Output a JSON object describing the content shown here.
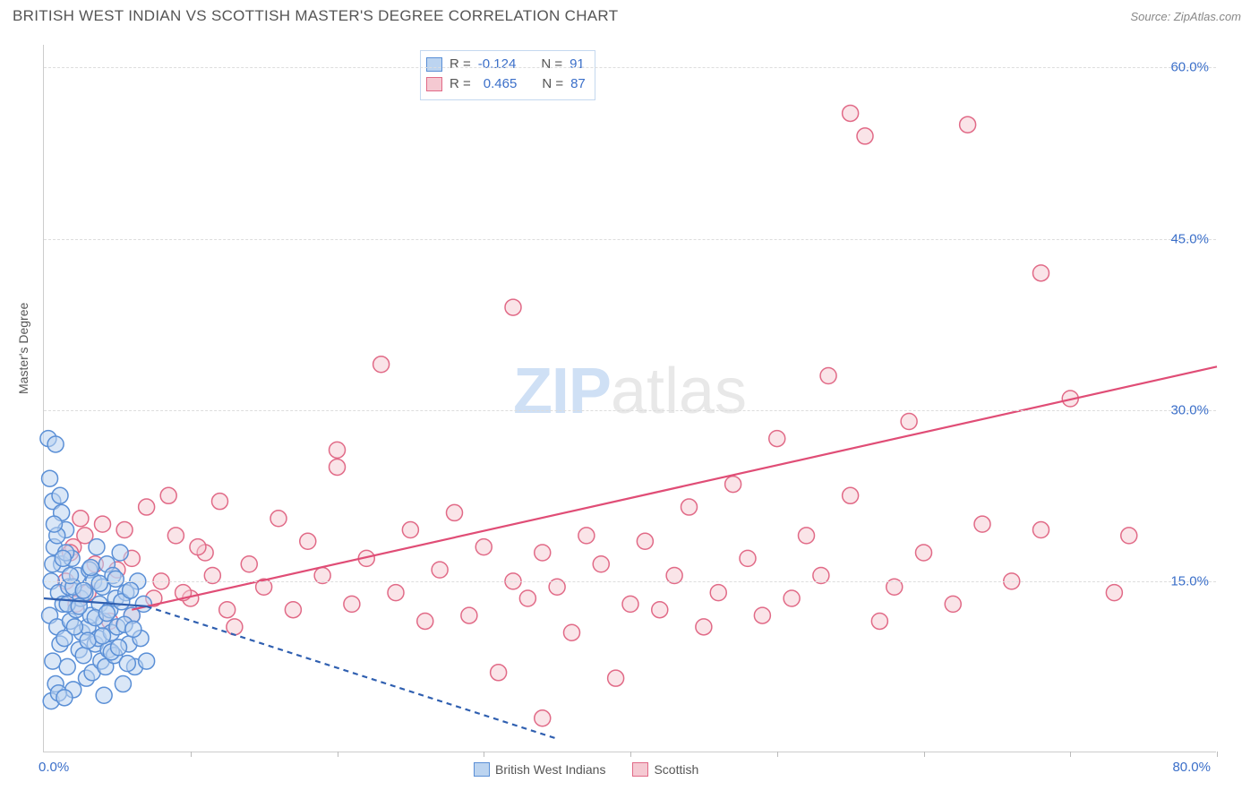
{
  "header": {
    "title": "BRITISH WEST INDIAN VS SCOTTISH MASTER'S DEGREE CORRELATION CHART",
    "source": "Source: ZipAtlas.com"
  },
  "watermark": {
    "zip": "ZIP",
    "atlas": "atlas"
  },
  "chart": {
    "type": "scatter",
    "yaxis_title": "Master's Degree",
    "xlim": [
      0,
      80
    ],
    "ylim": [
      0,
      62
    ],
    "xaxis_min_label": "0.0%",
    "xaxis_max_label": "80.0%",
    "yticks": [
      15,
      30,
      45,
      60
    ],
    "ytick_labels": [
      "15.0%",
      "30.0%",
      "45.0%",
      "60.0%"
    ],
    "xticks": [
      10,
      20,
      30,
      40,
      50,
      60,
      70,
      80
    ],
    "grid_color": "#dddddd",
    "axis_color": "#cccccc",
    "tick_label_color": "#3b6fc9",
    "marker_radius": 9,
    "marker_stroke_width": 1.5,
    "trend_line_width": 2.2
  },
  "series": {
    "bwi": {
      "label": "British West Indians",
      "fill": "#bcd4f0",
      "stroke": "#5a8fd6",
      "fill_opacity": 0.55,
      "r_label": "R =",
      "n_label": "N =",
      "r_value": "-0.124",
      "n_value": "91",
      "trend_color": "#2f5fb0",
      "trend_solid": {
        "x1": 0,
        "y1": 13.5,
        "x2": 7,
        "y2": 12.8
      },
      "trend_dash": {
        "x1": 7,
        "y1": 12.8,
        "x2": 35,
        "y2": 1.2
      },
      "points": [
        [
          0.3,
          27.5
        ],
        [
          0.4,
          12
        ],
        [
          0.5,
          15
        ],
        [
          0.6,
          8
        ],
        [
          0.7,
          18
        ],
        [
          0.8,
          6
        ],
        [
          0.9,
          11
        ],
        [
          1.0,
          14
        ],
        [
          1.1,
          9.5
        ],
        [
          1.2,
          16.5
        ],
        [
          1.3,
          13
        ],
        [
          1.4,
          10
        ],
        [
          1.5,
          19.5
        ],
        [
          1.6,
          7.5
        ],
        [
          1.7,
          14.5
        ],
        [
          1.8,
          11.5
        ],
        [
          1.9,
          17
        ],
        [
          2.0,
          5.5
        ],
        [
          0.6,
          22
        ],
        [
          2.2,
          12.5
        ],
        [
          2.3,
          15.5
        ],
        [
          2.4,
          9
        ],
        [
          2.5,
          13.5
        ],
        [
          2.6,
          10.5
        ],
        [
          2.7,
          8.5
        ],
        [
          2.8,
          14
        ],
        [
          2.9,
          6.5
        ],
        [
          3.0,
          11
        ],
        [
          3.1,
          16
        ],
        [
          3.2,
          12
        ],
        [
          3.3,
          7
        ],
        [
          3.4,
          15
        ],
        [
          3.5,
          9.5
        ],
        [
          3.6,
          18
        ],
        [
          3.7,
          10
        ],
        [
          3.8,
          13
        ],
        [
          3.9,
          8
        ],
        [
          4.0,
          14.5
        ],
        [
          4.1,
          11.5
        ],
        [
          4.2,
          7.5
        ],
        [
          4.3,
          16.5
        ],
        [
          4.4,
          9
        ],
        [
          4.5,
          12.5
        ],
        [
          4.6,
          10.5
        ],
        [
          4.7,
          15.5
        ],
        [
          4.8,
          8.5
        ],
        [
          4.9,
          13.5
        ],
        [
          5.0,
          11
        ],
        [
          5.2,
          17.5
        ],
        [
          5.4,
          6
        ],
        [
          5.6,
          14
        ],
        [
          5.8,
          9.5
        ],
        [
          6.0,
          12
        ],
        [
          6.2,
          7.5
        ],
        [
          6.4,
          15
        ],
        [
          6.6,
          10
        ],
        [
          6.8,
          13
        ],
        [
          7.0,
          8
        ],
        [
          0.5,
          4.5
        ],
        [
          1.0,
          5.2
        ],
        [
          1.4,
          4.8
        ],
        [
          4.1,
          5.0
        ],
        [
          0.8,
          27
        ],
        [
          1.2,
          21
        ],
        [
          0.4,
          24
        ],
        [
          0.9,
          19
        ],
        [
          1.5,
          17.5
        ],
        [
          0.6,
          16.5
        ],
        [
          2.0,
          14.5
        ],
        [
          1.1,
          22.5
        ],
        [
          0.7,
          20
        ],
        [
          1.3,
          17
        ],
        [
          1.6,
          13
        ],
        [
          1.8,
          15.5
        ],
        [
          2.1,
          11
        ],
        [
          2.4,
          12.8
        ],
        [
          2.7,
          14.2
        ],
        [
          3.0,
          9.8
        ],
        [
          3.2,
          16.2
        ],
        [
          3.5,
          11.8
        ],
        [
          3.8,
          14.8
        ],
        [
          4.0,
          10.2
        ],
        [
          4.3,
          12.2
        ],
        [
          4.6,
          8.8
        ],
        [
          4.9,
          15.2
        ],
        [
          5.1,
          9.2
        ],
        [
          5.3,
          13.2
        ],
        [
          5.5,
          11.2
        ],
        [
          5.7,
          7.8
        ],
        [
          5.9,
          14.2
        ],
        [
          6.1,
          10.8
        ]
      ]
    },
    "scot": {
      "label": "Scottish",
      "fill": "#f5c9d2",
      "stroke": "#e16a87",
      "fill_opacity": 0.5,
      "r_label": "R =",
      "n_label": "N =",
      "r_value": "0.465",
      "n_value": "87",
      "trend_color": "#e04d76",
      "trend_solid": {
        "x1": 6,
        "y1": 12.5,
        "x2": 80,
        "y2": 33.8
      },
      "points": [
        [
          2,
          18
        ],
        [
          3,
          14
        ],
        [
          4,
          20
        ],
        [
          5,
          16
        ],
        [
          6,
          12
        ],
        [
          7,
          21.5
        ],
        [
          8,
          15
        ],
        [
          9,
          19
        ],
        [
          10,
          13.5
        ],
        [
          11,
          17.5
        ],
        [
          12,
          22
        ],
        [
          13,
          11
        ],
        [
          14,
          16.5
        ],
        [
          15,
          14.5
        ],
        [
          16,
          20.5
        ],
        [
          17,
          12.5
        ],
        [
          18,
          18.5
        ],
        [
          19,
          15.5
        ],
        [
          20,
          25
        ],
        [
          20,
          26.5
        ],
        [
          21,
          13
        ],
        [
          22,
          17
        ],
        [
          23,
          34
        ],
        [
          24,
          14
        ],
        [
          25,
          19.5
        ],
        [
          26,
          11.5
        ],
        [
          27,
          16
        ],
        [
          28,
          21
        ],
        [
          29,
          12
        ],
        [
          30,
          18
        ],
        [
          31,
          7
        ],
        [
          32,
          15
        ],
        [
          33,
          13.5
        ],
        [
          32,
          39
        ],
        [
          34,
          17.5
        ],
        [
          34,
          3
        ],
        [
          35,
          14.5
        ],
        [
          36,
          10.5
        ],
        [
          37,
          19
        ],
        [
          38,
          16.5
        ],
        [
          39,
          6.5
        ],
        [
          40,
          13
        ],
        [
          41,
          18.5
        ],
        [
          42,
          12.5
        ],
        [
          43,
          15.5
        ],
        [
          44,
          21.5
        ],
        [
          45,
          11
        ],
        [
          46,
          14
        ],
        [
          47,
          23.5
        ],
        [
          48,
          17
        ],
        [
          49,
          12
        ],
        [
          50,
          27.5
        ],
        [
          51,
          13.5
        ],
        [
          52,
          19
        ],
        [
          53.5,
          33
        ],
        [
          53,
          15.5
        ],
        [
          55,
          22.5
        ],
        [
          55,
          56
        ],
        [
          57,
          11.5
        ],
        [
          56,
          54
        ],
        [
          58,
          14.5
        ],
        [
          59,
          29
        ],
        [
          60,
          17.5
        ],
        [
          62,
          13
        ],
        [
          64,
          20
        ],
        [
          63,
          55
        ],
        [
          66,
          15
        ],
        [
          68,
          42
        ],
        [
          68,
          19.5
        ],
        [
          70,
          31
        ],
        [
          73,
          14
        ],
        [
          74,
          19
        ],
        [
          5.5,
          19.5
        ],
        [
          8.5,
          22.5
        ],
        [
          6,
          17
        ],
        [
          9.5,
          14
        ],
        [
          3.5,
          16.5
        ],
        [
          4.5,
          11.5
        ],
        [
          7.5,
          13.5
        ],
        [
          10.5,
          18
        ],
        [
          11.5,
          15.5
        ],
        [
          12.5,
          12.5
        ],
        [
          2.5,
          20.5
        ],
        [
          1.5,
          15
        ],
        [
          1.8,
          17.5
        ],
        [
          2.2,
          13
        ],
        [
          2.8,
          19
        ]
      ]
    }
  }
}
